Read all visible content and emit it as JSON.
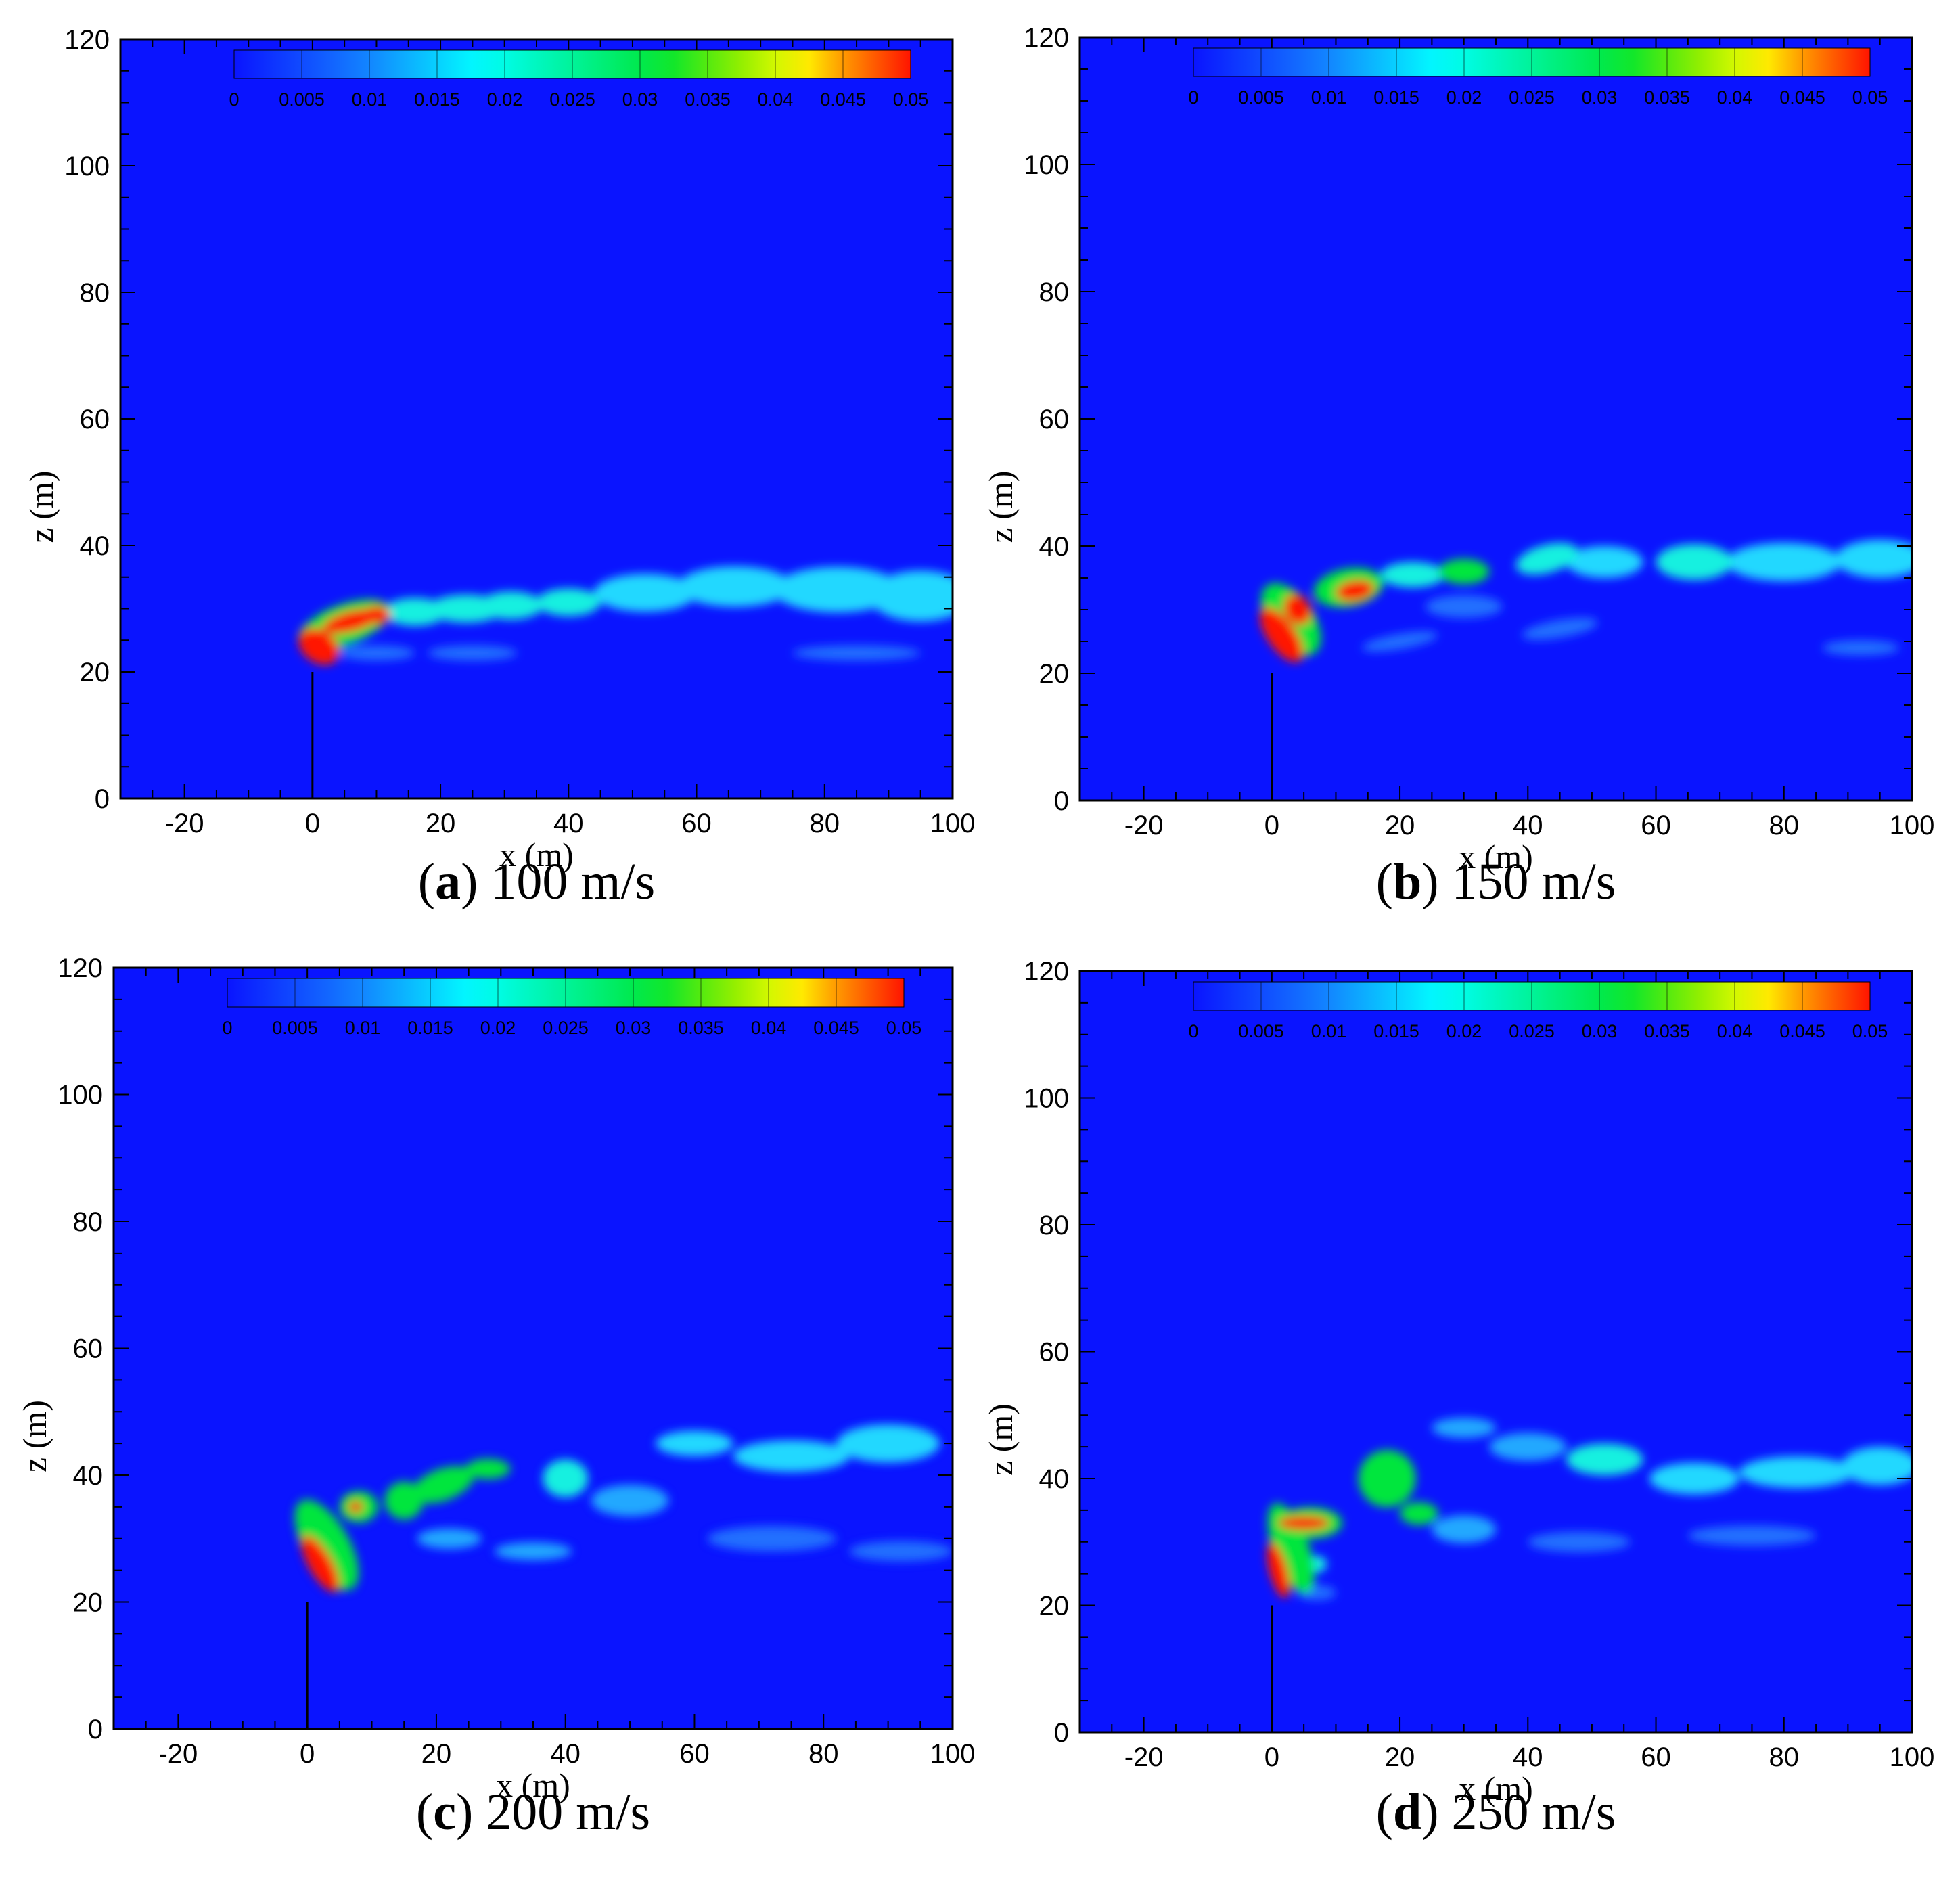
{
  "chart_data": [
    {
      "type": "heatmap",
      "caption_letter": "a",
      "caption_text": "100 m/s",
      "xlabel": "x (m)",
      "ylabel": "z (m)",
      "xlim": [
        -30,
        100
      ],
      "ylim": [
        0,
        120
      ],
      "xticks": [
        -20,
        0,
        20,
        40,
        60,
        80,
        100
      ],
      "yticks": [
        0,
        20,
        40,
        60,
        80,
        100,
        120
      ],
      "grid": false,
      "colorbar": {
        "range": [
          0,
          0.05
        ],
        "ticks": [
          "0",
          "0.005",
          "0.01",
          "0.015",
          "0.02",
          "0.025",
          "0.03",
          "0.035",
          "0.04",
          "0.045",
          "0.05"
        ],
        "placement": "top"
      },
      "stack": {
        "x": 0,
        "height": 20
      },
      "plume": [
        {
          "x": 1,
          "z": 24,
          "rx": 2.5,
          "rz": 3.5,
          "rot": -55,
          "value": 0.05
        },
        {
          "x": 6,
          "z": 28,
          "rx": 4.5,
          "rz": 1.6,
          "rot": -15,
          "value": 0.05
        },
        {
          "x": 10,
          "z": 29,
          "rx": 2.2,
          "rz": 1.4,
          "rot": 0,
          "value": 0.05
        },
        {
          "x": 5,
          "z": 27.5,
          "rx": 7.5,
          "rz": 3.2,
          "rot": -20,
          "value": 0.02
        },
        {
          "x": 16,
          "z": 29.5,
          "rx": 5,
          "rz": 2.2,
          "rot": 0,
          "value": 0.015
        },
        {
          "x": 24,
          "z": 30,
          "rx": 6,
          "rz": 2.2,
          "rot": 0,
          "value": 0.015
        },
        {
          "x": 31,
          "z": 30.5,
          "rx": 5,
          "rz": 2.2,
          "rot": 0,
          "value": 0.013
        },
        {
          "x": 40,
          "z": 31,
          "rx": 5,
          "rz": 2.2,
          "rot": 0,
          "value": 0.012
        },
        {
          "x": 52,
          "z": 32.5,
          "rx": 8,
          "rz": 3,
          "rot": 0,
          "value": 0.01
        },
        {
          "x": 66,
          "z": 33.5,
          "rx": 9,
          "rz": 3.2,
          "rot": 0,
          "value": 0.009
        },
        {
          "x": 82,
          "z": 33,
          "rx": 10,
          "rz": 3.6,
          "rot": 0,
          "value": 0.009
        },
        {
          "x": 95,
          "z": 32,
          "rx": 8,
          "rz": 4,
          "rot": 0,
          "value": 0.009
        },
        {
          "x": 10,
          "z": 23,
          "rx": 6,
          "rz": 1.2,
          "rot": 0,
          "value": 0.006
        },
        {
          "x": 25,
          "z": 23,
          "rx": 7,
          "rz": 1.2,
          "rot": 0,
          "value": 0.005
        },
        {
          "x": 85,
          "z": 23,
          "rx": 10,
          "rz": 1.2,
          "rot": 0,
          "value": 0.005
        }
      ]
    },
    {
      "type": "heatmap",
      "caption_letter": "b",
      "caption_text": "150 m/s",
      "xlabel": "x (m)",
      "ylabel": "z (m)",
      "xlim": [
        -30,
        100
      ],
      "ylim": [
        0,
        120
      ],
      "xticks": [
        -20,
        0,
        20,
        40,
        60,
        80,
        100
      ],
      "yticks": [
        0,
        20,
        40,
        60,
        80,
        100,
        120
      ],
      "grid": false,
      "colorbar": {
        "range": [
          0,
          0.05
        ],
        "ticks": [
          "0",
          "0.005",
          "0.01",
          "0.015",
          "0.02",
          "0.025",
          "0.03",
          "0.035",
          "0.04",
          "0.045",
          "0.05"
        ],
        "placement": "top"
      },
      "stack": {
        "x": 0,
        "height": 20
      },
      "plume": [
        {
          "x": 1.5,
          "z": 26,
          "rx": 2.2,
          "rz": 5,
          "rot": -35,
          "value": 0.05
        },
        {
          "x": 4,
          "z": 30,
          "rx": 2,
          "rz": 2.5,
          "rot": -30,
          "value": 0.05
        },
        {
          "x": 13,
          "z": 33,
          "rx": 3,
          "rz": 1.6,
          "rot": -10,
          "value": 0.05
        },
        {
          "x": 3,
          "z": 28.5,
          "rx": 3.5,
          "rz": 6.5,
          "rot": -35,
          "value": 0.02
        },
        {
          "x": 12,
          "z": 33.5,
          "rx": 5.5,
          "rz": 3,
          "rot": -10,
          "value": 0.02
        },
        {
          "x": 22,
          "z": 35.5,
          "rx": 5,
          "rz": 2,
          "rot": 0,
          "value": 0.015
        },
        {
          "x": 30,
          "z": 36,
          "rx": 4,
          "rz": 2,
          "rot": 0,
          "value": 0.02
        },
        {
          "x": 43,
          "z": 38,
          "rx": 5,
          "rz": 2.2,
          "rot": -15,
          "value": 0.015
        },
        {
          "x": 52,
          "z": 37.5,
          "rx": 6,
          "rz": 2.5,
          "rot": 0,
          "value": 0.01
        },
        {
          "x": 66,
          "z": 37.5,
          "rx": 6,
          "rz": 2.8,
          "rot": 0,
          "value": 0.012
        },
        {
          "x": 80,
          "z": 37.5,
          "rx": 9,
          "rz": 3,
          "rot": 0,
          "value": 0.009
        },
        {
          "x": 95,
          "z": 38,
          "rx": 7,
          "rz": 3,
          "rot": 0,
          "value": 0.01
        },
        {
          "x": 30,
          "z": 30.5,
          "rx": 6,
          "rz": 1.8,
          "rot": 0,
          "value": 0.006
        },
        {
          "x": 20,
          "z": 25,
          "rx": 6,
          "rz": 1.2,
          "rot": -10,
          "value": 0.006
        },
        {
          "x": 45,
          "z": 27,
          "rx": 6,
          "rz": 1.4,
          "rot": -10,
          "value": 0.006
        },
        {
          "x": 92,
          "z": 24,
          "rx": 6,
          "rz": 1.2,
          "rot": 0,
          "value": 0.005
        }
      ]
    },
    {
      "type": "heatmap",
      "caption_letter": "c",
      "caption_text": "200 m/s",
      "xlabel": "x (m)",
      "ylabel": "z (m)",
      "xlim": [
        -30,
        100
      ],
      "ylim": [
        0,
        120
      ],
      "xticks": [
        -20,
        0,
        20,
        40,
        60,
        80,
        100
      ],
      "yticks": [
        0,
        20,
        40,
        60,
        80,
        100,
        120
      ],
      "grid": false,
      "colorbar": {
        "range": [
          0,
          0.05
        ],
        "ticks": [
          "0",
          "0.005",
          "0.01",
          "0.015",
          "0.02",
          "0.025",
          "0.03",
          "0.035",
          "0.04",
          "0.045",
          "0.05"
        ],
        "placement": "top"
      },
      "stack": {
        "x": 0,
        "height": 20
      },
      "plume": [
        {
          "x": 2,
          "z": 26,
          "rx": 1.8,
          "rz": 5,
          "rot": -30,
          "value": 0.05
        },
        {
          "x": 7.5,
          "z": 35,
          "rx": 1.1,
          "rz": 0.9,
          "rot": 0,
          "value": 0.05
        },
        {
          "x": 3,
          "z": 29,
          "rx": 3.5,
          "rz": 8,
          "rot": -30,
          "value": 0.02
        },
        {
          "x": 8,
          "z": 35,
          "rx": 3,
          "rz": 2.5,
          "rot": 0,
          "value": 0.02
        },
        {
          "x": 15,
          "z": 36,
          "rx": 3,
          "rz": 3,
          "rot": 0,
          "value": 0.02
        },
        {
          "x": 21,
          "z": 38.5,
          "rx": 5,
          "rz": 2.5,
          "rot": -20,
          "value": 0.02
        },
        {
          "x": 28,
          "z": 41,
          "rx": 3.5,
          "rz": 1.6,
          "rot": 0,
          "value": 0.02
        },
        {
          "x": 40,
          "z": 39.5,
          "rx": 3.5,
          "rz": 3,
          "rot": 0,
          "value": 0.012
        },
        {
          "x": 60,
          "z": 45,
          "rx": 6,
          "rz": 2,
          "rot": 0,
          "value": 0.01
        },
        {
          "x": 75,
          "z": 43,
          "rx": 9,
          "rz": 2.5,
          "rot": 0,
          "value": 0.009
        },
        {
          "x": 90,
          "z": 45,
          "rx": 8,
          "rz": 3,
          "rot": 0,
          "value": 0.011
        },
        {
          "x": 50,
          "z": 36,
          "rx": 6,
          "rz": 2.5,
          "rot": 0,
          "value": 0.008
        },
        {
          "x": 22,
          "z": 30,
          "rx": 5,
          "rz": 1.6,
          "rot": 0,
          "value": 0.007
        },
        {
          "x": 35,
          "z": 28,
          "rx": 6,
          "rz": 1.4,
          "rot": 0,
          "value": 0.007
        },
        {
          "x": 72,
          "z": 30,
          "rx": 10,
          "rz": 2,
          "rot": 0,
          "value": 0.006
        },
        {
          "x": 92,
          "z": 28,
          "rx": 8,
          "rz": 1.6,
          "rot": 0,
          "value": 0.006
        }
      ]
    },
    {
      "type": "heatmap",
      "caption_letter": "d",
      "caption_text": "250 m/s",
      "xlabel": "x (m)",
      "ylabel": "z (m)",
      "xlim": [
        -30,
        100
      ],
      "ylim": [
        0,
        120
      ],
      "xticks": [
        -20,
        0,
        20,
        40,
        60,
        80,
        100
      ],
      "yticks": [
        0,
        20,
        40,
        60,
        80,
        100,
        120
      ],
      "grid": false,
      "colorbar": {
        "range": [
          0,
          0.05
        ],
        "ticks": [
          "0",
          "0.005",
          "0.01",
          "0.015",
          "0.02",
          "0.025",
          "0.03",
          "0.035",
          "0.04",
          "0.045",
          "0.05"
        ],
        "placement": "top"
      },
      "stack": {
        "x": 0,
        "height": 20
      },
      "plume": [
        {
          "x": 1,
          "z": 25.5,
          "rx": 1.4,
          "rz": 4.5,
          "rot": -15,
          "value": 0.05
        },
        {
          "x": 5,
          "z": 33,
          "rx": 4,
          "rz": 1.1,
          "rot": 0,
          "value": 0.05
        },
        {
          "x": 3,
          "z": 29,
          "rx": 2.8,
          "rz": 7.5,
          "rot": -20,
          "value": 0.02
        },
        {
          "x": 6,
          "z": 33,
          "rx": 5,
          "rz": 2.5,
          "rot": 0,
          "value": 0.02
        },
        {
          "x": 7,
          "z": 26.5,
          "rx": 1.6,
          "rz": 1.3,
          "rot": 0,
          "value": 0.015
        },
        {
          "x": 18,
          "z": 40,
          "rx": 4.5,
          "rz": 4.5,
          "rot": -30,
          "value": 0.02
        },
        {
          "x": 23,
          "z": 34.5,
          "rx": 3,
          "rz": 1.8,
          "rot": 0,
          "value": 0.02
        },
        {
          "x": 30,
          "z": 48,
          "rx": 5,
          "rz": 1.6,
          "rot": 0,
          "value": 0.008
        },
        {
          "x": 40,
          "z": 45,
          "rx": 6,
          "rz": 2.2,
          "rot": 0,
          "value": 0.008
        },
        {
          "x": 52,
          "z": 43,
          "rx": 6,
          "rz": 2.5,
          "rot": 0,
          "value": 0.012
        },
        {
          "x": 66,
          "z": 40,
          "rx": 7,
          "rz": 2.5,
          "rot": 0,
          "value": 0.011
        },
        {
          "x": 82,
          "z": 41,
          "rx": 9,
          "rz": 2.5,
          "rot": 0,
          "value": 0.01
        },
        {
          "x": 95,
          "z": 42,
          "rx": 6,
          "rz": 3,
          "rot": 0,
          "value": 0.011
        },
        {
          "x": 30,
          "z": 32,
          "rx": 5,
          "rz": 2.2,
          "rot": 0,
          "value": 0.007
        },
        {
          "x": 48,
          "z": 30,
          "rx": 8,
          "rz": 1.6,
          "rot": 0,
          "value": 0.006
        },
        {
          "x": 75,
          "z": 31,
          "rx": 10,
          "rz": 1.6,
          "rot": 0,
          "value": 0.005
        },
        {
          "x": 7,
          "z": 22,
          "rx": 3,
          "rz": 1.2,
          "rot": 0,
          "value": 0.006
        }
      ]
    }
  ]
}
